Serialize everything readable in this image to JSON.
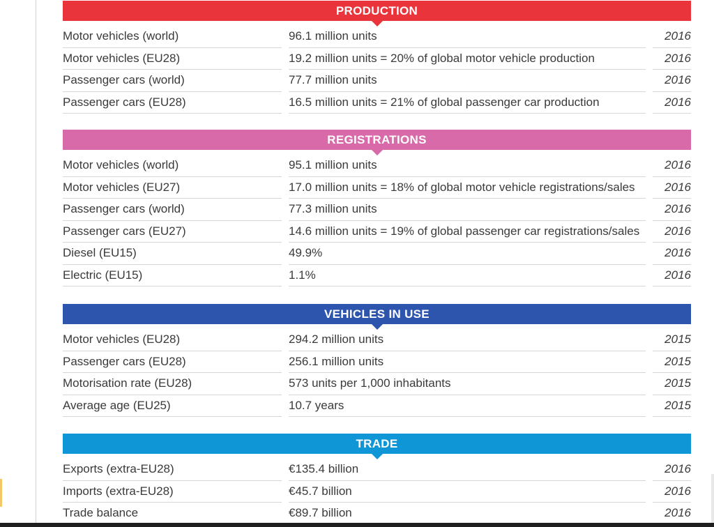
{
  "sections": [
    {
      "title": "PRODUCTION",
      "color": "#e8343a",
      "rows": [
        {
          "label": "Motor vehicles (world)",
          "value": "96.1 million units",
          "year": "2016"
        },
        {
          "label": "Motor vehicles (EU28)",
          "value": "19.2 million units = 20% of global motor vehicle production",
          "year": "2016"
        },
        {
          "label": "Passenger cars (world)",
          "value": "77.7 million units",
          "year": "2016"
        },
        {
          "label": "Passenger cars (EU28)",
          "value": "16.5 million units = 21% of global passenger car production",
          "year": "2016"
        }
      ]
    },
    {
      "title": "REGISTRATIONS",
      "color": "#d96aaa",
      "rows": [
        {
          "label": "Motor vehicles (world)",
          "value": "95.1 million units",
          "year": "2016"
        },
        {
          "label": "Motor vehicles (EU27)",
          "value": "17.0 million units = 18% of global motor vehicle registrations/sales",
          "year": "2016"
        },
        {
          "label": "Passenger cars (world)",
          "value": "77.3 million units",
          "year": "2016"
        },
        {
          "label": "Passenger cars (EU27)",
          "value": "14.6 million units = 19% of global passenger car registrations/sales",
          "year": "2016"
        },
        {
          "label": "Diesel (EU15)",
          "value": "49.9%",
          "year": "2016"
        },
        {
          "label": "Electric (EU15)",
          "value": "1.1%",
          "year": "2016"
        }
      ]
    },
    {
      "title": "VEHICLES IN USE",
      "color": "#2e55ad",
      "rows": [
        {
          "label": "Motor vehicles (EU28)",
          "value": "294.2 million units",
          "year": "2015"
        },
        {
          "label": "Passenger cars (EU28)",
          "value": "256.1 million units",
          "year": "2015"
        },
        {
          "label": "Motorisation rate (EU28)",
          "value": "573 units per 1,000 inhabitants",
          "year": "2015"
        },
        {
          "label": "Average age (EU25)",
          "value": "10.7 years",
          "year": "2015"
        }
      ]
    },
    {
      "title": "TRADE",
      "color": "#0f96d6",
      "rows": [
        {
          "label": "Exports (extra-EU28)",
          "value": "€135.4 billion",
          "year": "2016"
        },
        {
          "label": "Imports (extra-EU28)",
          "value": "€45.7 billion",
          "year": "2016"
        },
        {
          "label": "Trade balance",
          "value": "€89.7 billion",
          "year": "2016"
        }
      ]
    }
  ]
}
